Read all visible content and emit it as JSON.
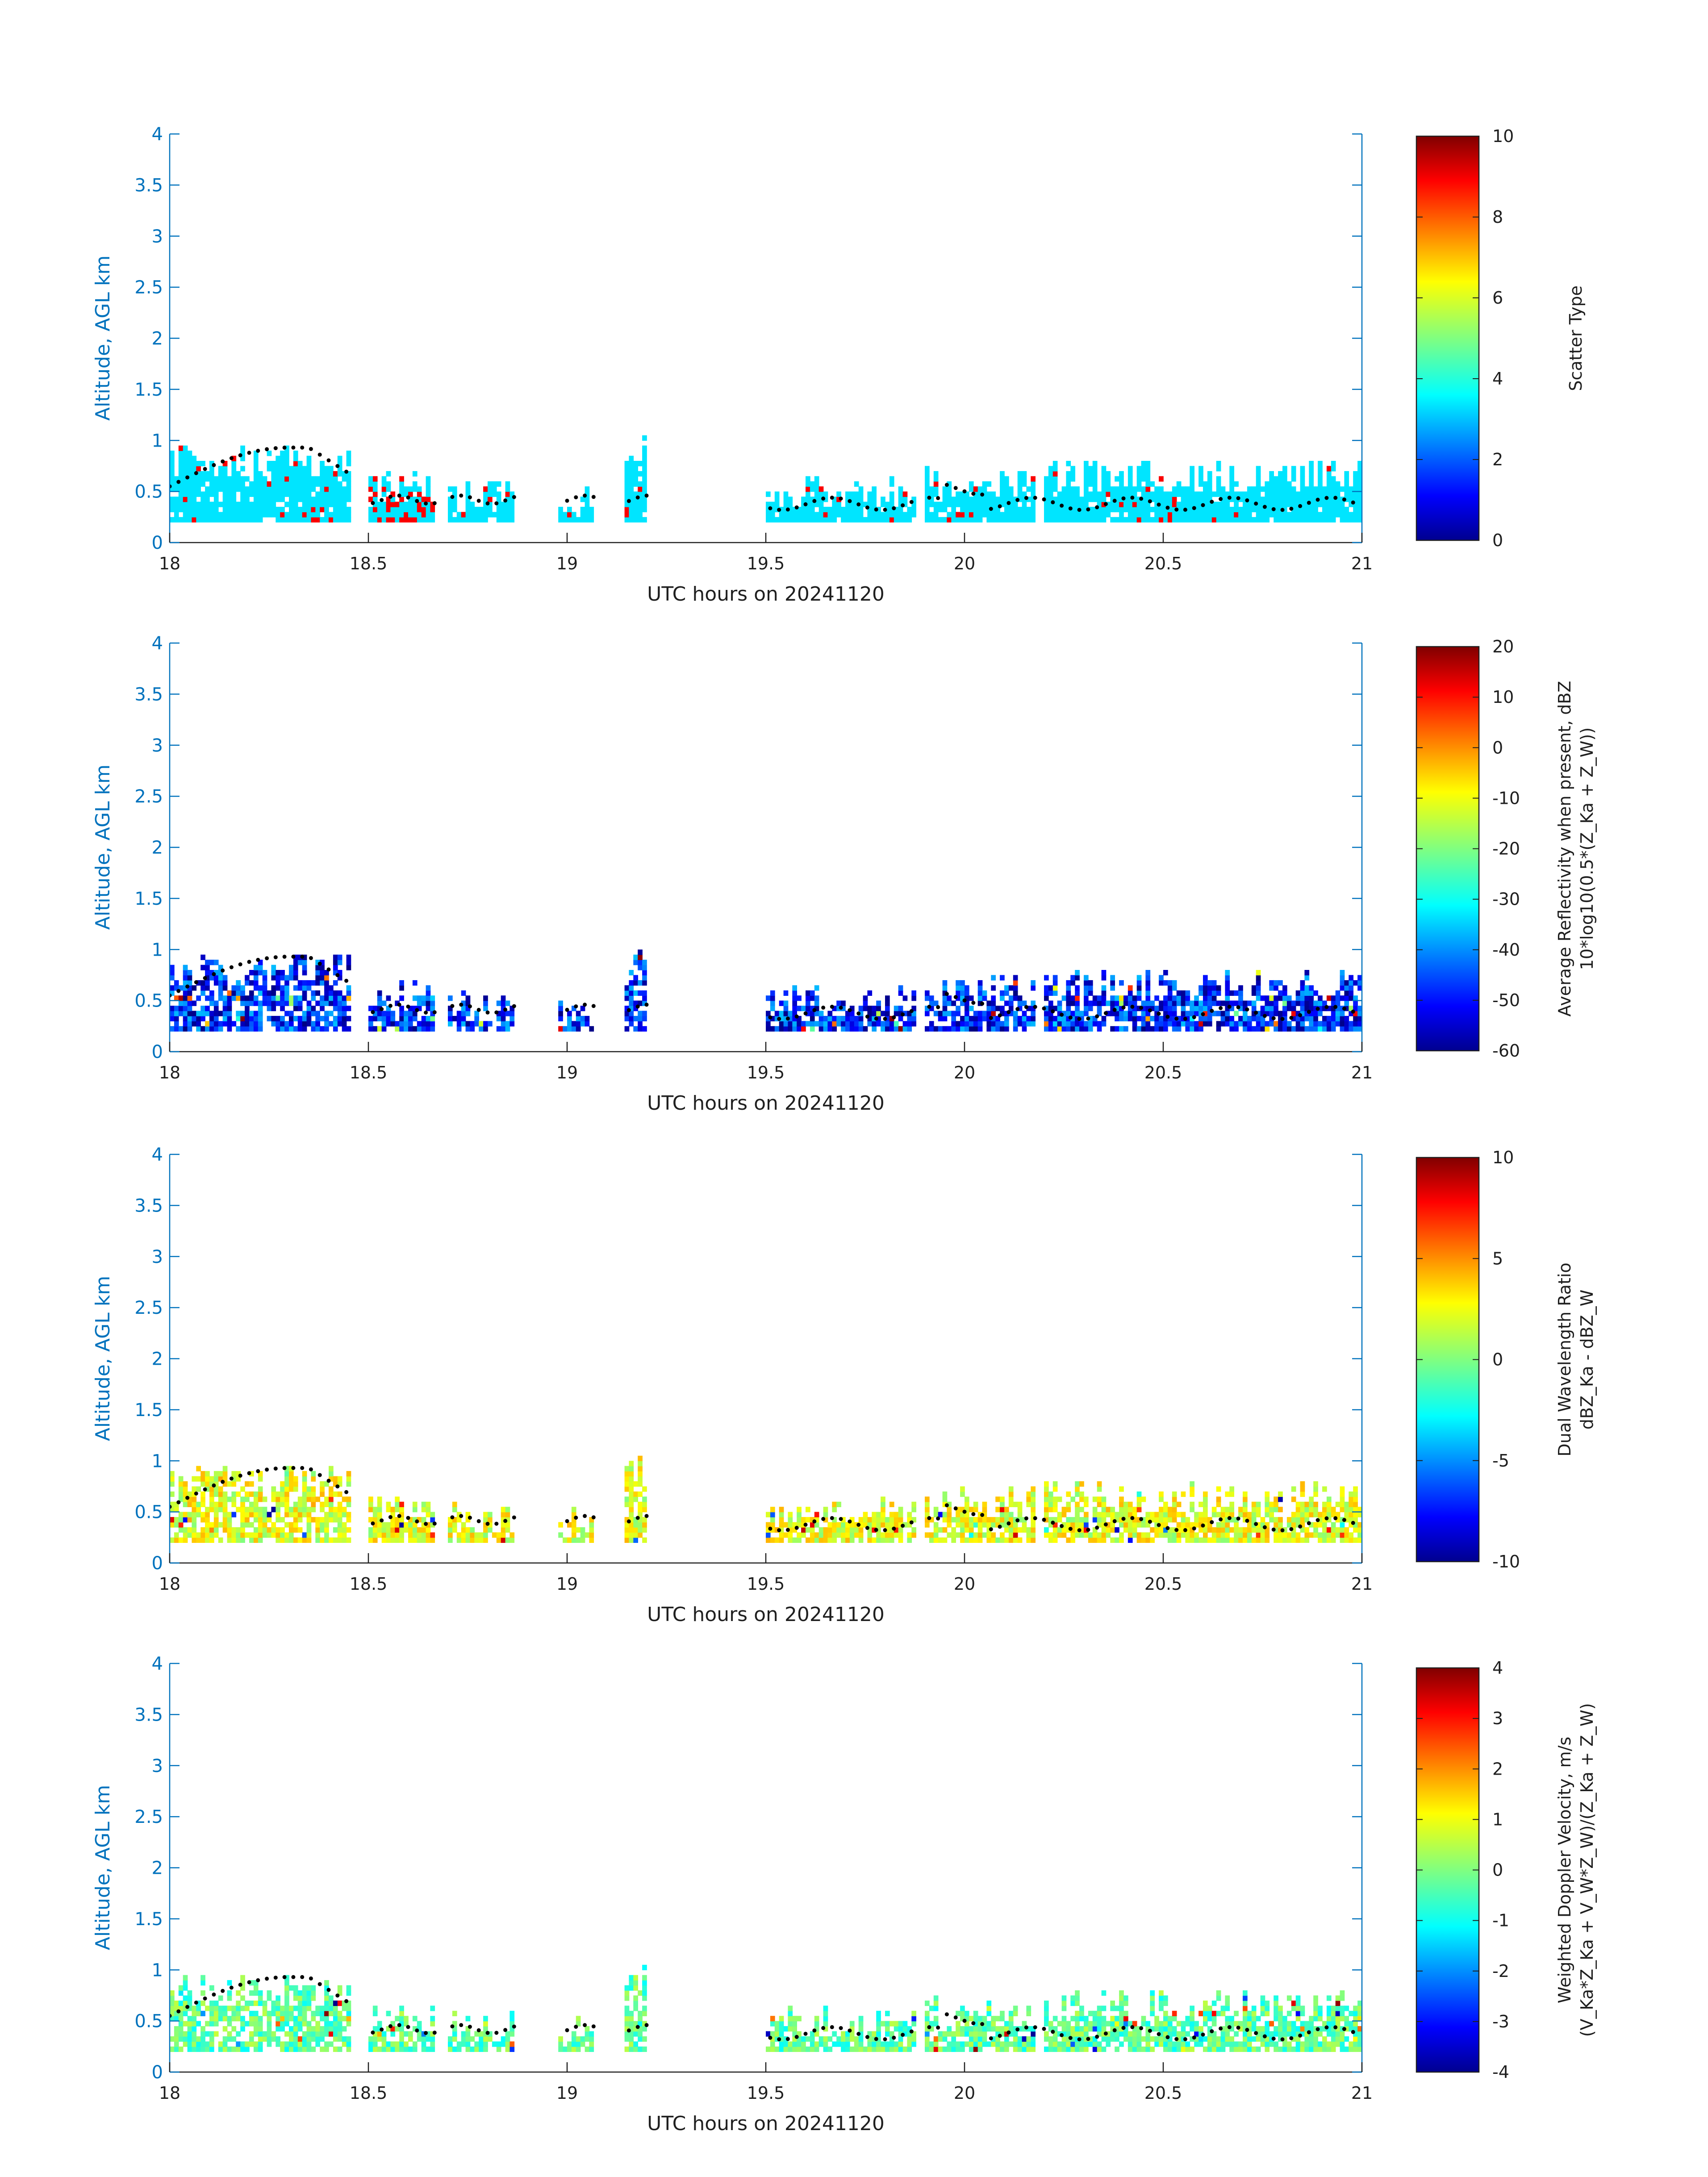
{
  "chart_data": [
    {
      "type": "heatmap",
      "panel": 1,
      "title": "",
      "xlabel": "UTC hours on 20241120",
      "ylabel": "Altitude, AGL km",
      "xlim": [
        18,
        21
      ],
      "ylim": [
        0,
        4
      ],
      "xticks": [
        "18",
        "18.5",
        "19",
        "19.5",
        "20",
        "20.5",
        "21"
      ],
      "yticks": [
        "0",
        "0.5",
        "1",
        "1.5",
        "2",
        "2.5",
        "3",
        "3.5",
        "4"
      ],
      "colorbar": {
        "label_lines": [
          "Scatter Type"
        ],
        "clim": [
          0,
          10
        ],
        "ticks": [
          "0",
          "2",
          "4",
          "6",
          "8",
          "10"
        ],
        "colormap": "jet"
      },
      "cloud_value": 3.5,
      "precip_value": 8.8,
      "overlay": "cloud-base black dots"
    },
    {
      "type": "heatmap",
      "panel": 2,
      "title": "",
      "xlabel": "UTC hours on 20241120",
      "ylabel": "Altitude, AGL km",
      "xlim": [
        18,
        21
      ],
      "ylim": [
        0,
        4
      ],
      "xticks": [
        "18",
        "18.5",
        "19",
        "19.5",
        "20",
        "20.5",
        "21"
      ],
      "yticks": [
        "0",
        "0.5",
        "1",
        "1.5",
        "2",
        "2.5",
        "3",
        "3.5",
        "4"
      ],
      "colorbar": {
        "label_lines": [
          "Average Reflectivity when present, dBZ",
          "10*log10(0.5*(Z_Ka + Z_W))"
        ],
        "clim": [
          -60,
          20
        ],
        "ticks": [
          "-60",
          "-50",
          "-40",
          "-30",
          "-20",
          "-10",
          "0",
          "10",
          "20"
        ],
        "colormap": "jet"
      },
      "typical_range": [
        -60,
        -35
      ],
      "overlay": "cloud-base black dots"
    },
    {
      "type": "heatmap",
      "panel": 3,
      "title": "",
      "xlabel": "UTC hours on 20241120",
      "ylabel": "Altitude, AGL km",
      "xlim": [
        18,
        21
      ],
      "ylim": [
        0,
        4
      ],
      "xticks": [
        "18",
        "18.5",
        "19",
        "19.5",
        "20",
        "20.5",
        "21"
      ],
      "yticks": [
        "0",
        "0.5",
        "1",
        "1.5",
        "2",
        "2.5",
        "3",
        "3.5",
        "4"
      ],
      "colorbar": {
        "label_lines": [
          "Dual Wavelength Ratio",
          "dBZ_Ka - dBZ_W"
        ],
        "clim": [
          -10,
          10
        ],
        "ticks": [
          "-10",
          "-5",
          "0",
          "5",
          "10"
        ],
        "colormap": "jet"
      },
      "typical_range": [
        0,
        4
      ],
      "overlay": "cloud-base black dots"
    },
    {
      "type": "heatmap",
      "panel": 4,
      "title": "",
      "xlabel": "UTC hours on 20241120",
      "ylabel": "Altitude, AGL km",
      "xlim": [
        18,
        21
      ],
      "ylim": [
        0,
        4
      ],
      "xticks": [
        "18",
        "18.5",
        "19",
        "19.5",
        "20",
        "20.5",
        "21"
      ],
      "yticks": [
        "0",
        "0.5",
        "1",
        "1.5",
        "2",
        "2.5",
        "3",
        "3.5",
        "4"
      ],
      "colorbar": {
        "label_lines": [
          "Weighted Doppler Velocity, m/s",
          "(V_Ka*Z_Ka + V_W*Z_W)/(Z_Ka + Z_W)"
        ],
        "clim": [
          -4,
          4
        ],
        "ticks": [
          "-4",
          "-3",
          "-2",
          "-1",
          "0",
          "1",
          "2",
          "3",
          "4"
        ],
        "colormap": "jet"
      },
      "typical_range": [
        -1,
        0.5
      ],
      "overlay": "cloud-base black dots"
    }
  ],
  "echo_segments_hours": [
    [
      18.0,
      18.45
    ],
    [
      18.5,
      18.67
    ],
    [
      18.7,
      18.87
    ],
    [
      18.98,
      19.07
    ],
    [
      19.15,
      19.2
    ],
    [
      19.5,
      19.88
    ],
    [
      19.9,
      20.18
    ],
    [
      20.2,
      21.0
    ]
  ],
  "echo_top_km": [
    0.95,
    0.7,
    0.6,
    0.55,
    1.05,
    0.65,
    0.75,
    0.8
  ],
  "echo_base_km": 0.2
}
